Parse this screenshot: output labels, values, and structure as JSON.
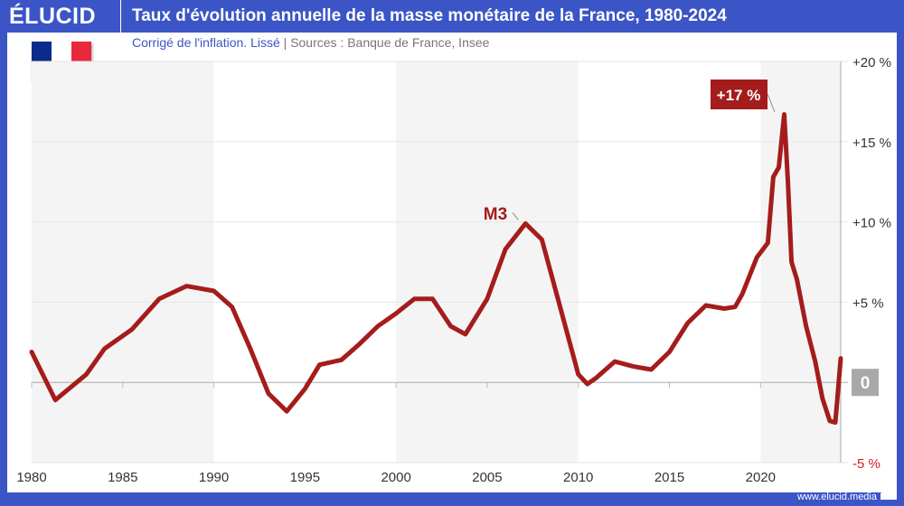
{
  "header": {
    "logo": "ÉLUCID",
    "title": "Taux d'évolution annuelle de la masse monétaire de la France, 1980-2024"
  },
  "subtitle": {
    "note": "Corrigé de l'inflation. Lissé",
    "separator": "|",
    "sources": "Sources : Banque de France, Insee"
  },
  "flag_colors": [
    "#0a2a8c",
    "#ffffff",
    "#e8283b"
  ],
  "footer": "www.elucid.media",
  "colors": {
    "line": "#a51c1c",
    "negative_tick": "#d0202a",
    "zero_badge": "#a8a8a8"
  },
  "chart_data": {
    "type": "line",
    "title": "Taux d'évolution annuelle de la masse monétaire de la France, 1980-2024",
    "xlim": [
      1980,
      2024.4
    ],
    "ylim": [
      -5,
      20
    ],
    "x_ticks": [
      1980,
      1985,
      1990,
      1995,
      2000,
      2005,
      2010,
      2015,
      2020
    ],
    "x_tick_labels": [
      "1980",
      "1985",
      "1990",
      "1995",
      "2000",
      "2005",
      "2010",
      "2015",
      "2020"
    ],
    "y_ticks": [
      20,
      15,
      10,
      5,
      0,
      -5
    ],
    "y_tick_labels": [
      "+20 %",
      "+15 %",
      "+10 %",
      "+5 %",
      "0",
      "-5 %"
    ],
    "grid": true,
    "shaded_bands": [
      [
        1980,
        1990
      ],
      [
        2000,
        2010
      ],
      [
        2020,
        2024.4
      ]
    ],
    "series": [
      {
        "name": "M3",
        "x": [
          1980,
          1981.3,
          1983,
          1984,
          1985.5,
          1987,
          1988.5,
          1990,
          1991,
          1992,
          1993,
          1994,
          1995,
          1995.8,
          1997,
          1998,
          1999,
          2000,
          2001,
          2002,
          2003,
          2003.8,
          2005,
          2006,
          2007.1,
          2008,
          2009,
          2010,
          2010.5,
          2011,
          2012,
          2013,
          2014,
          2015,
          2016,
          2017,
          2018,
          2018.6,
          2019,
          2019.8,
          2020.4,
          2020.7,
          2021,
          2021.3,
          2021.5,
          2021.7,
          2022,
          2022.5,
          2023,
          2023.4,
          2023.8,
          2024.1,
          2024.2,
          2024.4
        ],
        "values": [
          1.9,
          -1.1,
          0.5,
          2.1,
          3.3,
          5.2,
          6.0,
          5.7,
          4.7,
          2.1,
          -0.7,
          -1.8,
          -0.4,
          1.1,
          1.4,
          2.4,
          3.5,
          4.3,
          5.2,
          5.2,
          3.5,
          3.0,
          5.2,
          8.3,
          9.9,
          8.9,
          4.7,
          0.5,
          -0.1,
          0.3,
          1.3,
          1.0,
          0.8,
          1.9,
          3.7,
          4.8,
          4.6,
          4.7,
          5.5,
          7.8,
          8.7,
          12.8,
          13.4,
          16.7,
          12.6,
          7.5,
          6.4,
          3.5,
          1.3,
          -1.0,
          -2.4,
          -2.5,
          -1.2,
          1.5
        ]
      }
    ],
    "annotations": [
      {
        "text": "M3",
        "x": 2007.1,
        "y": 9.9
      },
      {
        "text": "+17 %",
        "x": 2021.3,
        "y": 16.7
      }
    ]
  }
}
